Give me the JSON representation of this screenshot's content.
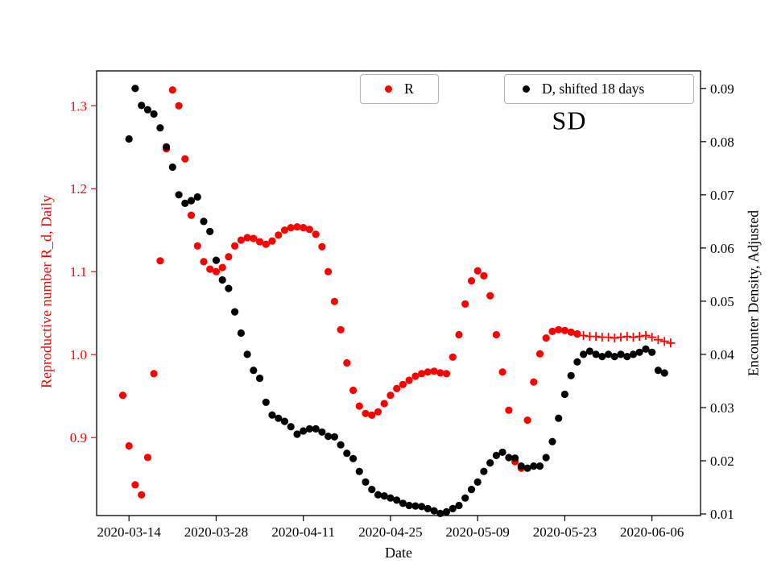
{
  "figure": {
    "background": "#ffffff",
    "frame_color": "#000000"
  },
  "chart_data": {
    "type": "scatter",
    "annotation": "SD",
    "xlabel": "Date",
    "x_start_date": "2020-03-13",
    "x_unit": "days",
    "x_tick_labels": [
      "2020-03-14",
      "2020-03-28",
      "2020-04-11",
      "2020-04-25",
      "2020-05-09",
      "2020-05-23",
      "2020-06-06"
    ],
    "x_lim_days": [
      -4.2,
      92.8
    ],
    "left_axis": {
      "label": "Reproductive number R_d, Daily",
      "color": "#ff0000",
      "ticks": [
        0.9,
        1.0,
        1.1,
        1.2,
        1.3
      ],
      "tick_decimals": 1,
      "lim": [
        0.806,
        1.342
      ]
    },
    "right_axis": {
      "label": "Encounter Density, Adjusted",
      "color": "#000000",
      "ticks": [
        0.01,
        0.02,
        0.03,
        0.04,
        0.05,
        0.06,
        0.07,
        0.08,
        0.09
      ],
      "tick_decimals": 2,
      "lim": [
        0.0097,
        0.0933
      ]
    },
    "legends": [
      {
        "label": "R",
        "color": "#ff0000",
        "marker": "circle"
      },
      {
        "label": "D, shifted 18 days",
        "color": "#000000",
        "marker": "circle"
      }
    ],
    "series": [
      {
        "id": "R",
        "name": "R",
        "axis": "left",
        "marker": "circle",
        "color": "#ff0000",
        "values": [
          0.951,
          0.89,
          0.843,
          0.831,
          0.876,
          0.977,
          1.113,
          1.248,
          1.319,
          1.3,
          1.236,
          1.168,
          1.131,
          1.112,
          1.103,
          1.1,
          1.105,
          1.118,
          1.131,
          1.138,
          1.141,
          1.14,
          1.136,
          1.133,
          1.137,
          1.144,
          1.15,
          1.153,
          1.154,
          1.153,
          1.151,
          1.145,
          1.13,
          1.1,
          1.064,
          1.03,
          0.99,
          0.957,
          0.938,
          0.929,
          0.927,
          0.931,
          0.941,
          0.951,
          0.959,
          0.964,
          0.969,
          0.974,
          0.977,
          0.979,
          0.98,
          0.978,
          0.977,
          0.997,
          1.024,
          1.061,
          1.089,
          1.101,
          1.095,
          1.071,
          1.024,
          0.979,
          0.933,
          0.871,
          0.863,
          0.921,
          0.967,
          1.001,
          1.02,
          1.028,
          1.03,
          1.029,
          1.027,
          1.025,
          null,
          null,
          null,
          null,
          null,
          null,
          null,
          null,
          null,
          null,
          null,
          null,
          null,
          null,
          null
        ]
      },
      {
        "id": "R-plus",
        "name": "R (plus markers)",
        "axis": "left",
        "marker": "plus",
        "color": "#ff0000",
        "values": [
          null,
          null,
          null,
          null,
          null,
          null,
          null,
          null,
          null,
          null,
          null,
          null,
          null,
          null,
          null,
          null,
          null,
          null,
          null,
          null,
          null,
          null,
          null,
          null,
          null,
          null,
          null,
          null,
          null,
          null,
          null,
          null,
          null,
          null,
          null,
          null,
          null,
          null,
          null,
          null,
          null,
          null,
          null,
          null,
          null,
          null,
          null,
          null,
          null,
          null,
          null,
          null,
          null,
          null,
          null,
          null,
          null,
          null,
          null,
          null,
          null,
          null,
          null,
          null,
          null,
          null,
          null,
          null,
          null,
          null,
          null,
          null,
          null,
          null,
          1.023,
          1.022,
          1.022,
          1.021,
          1.021,
          1.02,
          1.021,
          1.022,
          1.021,
          1.022,
          1.023,
          1.021,
          1.018,
          1.016,
          1.014
        ]
      },
      {
        "id": "D",
        "name": "D, shifted 18 days",
        "axis": "right",
        "marker": "circle",
        "color": "#000000",
        "values": [
          null,
          0.0805,
          0.09,
          0.0868,
          0.086,
          0.0852,
          0.0826,
          0.079,
          0.0752,
          0.07,
          0.0684,
          0.0689,
          0.0696,
          0.065,
          0.0631,
          0.0577,
          0.054,
          0.0524,
          0.048,
          0.044,
          0.04,
          0.037,
          0.0355,
          0.031,
          0.0286,
          0.028,
          0.0274,
          0.0264,
          0.025,
          0.0256,
          0.026,
          0.026,
          0.0254,
          0.0246,
          0.0245,
          0.023,
          0.0214,
          0.0204,
          0.018,
          0.016,
          0.0146,
          0.0136,
          0.0134,
          0.013,
          0.0126,
          0.012,
          0.0116,
          0.0115,
          0.0114,
          0.011,
          0.0106,
          0.0101,
          0.0104,
          0.011,
          0.0116,
          0.013,
          0.0146,
          0.016,
          0.018,
          0.0196,
          0.021,
          0.0216,
          0.0206,
          0.0205,
          0.019,
          0.0186,
          0.019,
          0.019,
          0.0206,
          0.0236,
          0.028,
          0.0325,
          0.036,
          0.0386,
          0.04,
          0.0406,
          0.04,
          0.0396,
          0.04,
          0.0396,
          0.04,
          0.0396,
          0.04,
          0.0404,
          0.041,
          0.0404,
          0.037,
          0.0365,
          null
        ]
      }
    ]
  }
}
